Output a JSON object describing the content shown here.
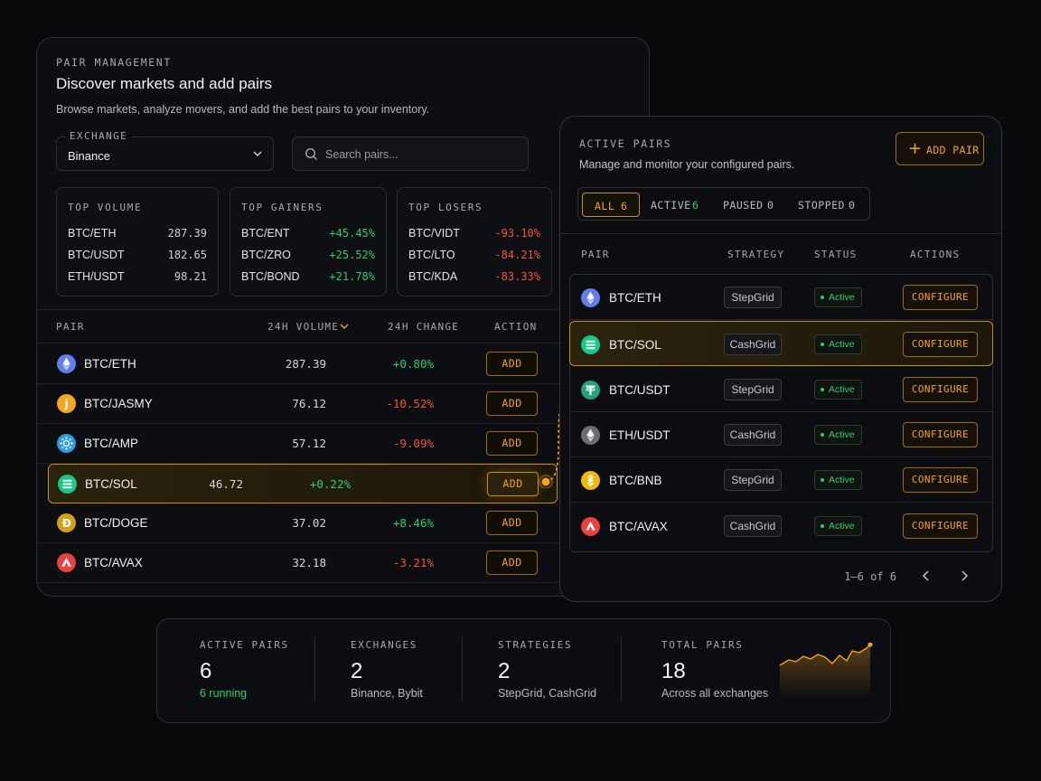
{
  "pair_management": {
    "eyebrow": "PAIR MANAGEMENT",
    "title": "Discover markets and add pairs",
    "subtitle": "Browse markets, analyze movers, and add the best pairs to your inventory.",
    "exchange": {
      "label": "EXCHANGE",
      "value": "Binance"
    },
    "search": {
      "placeholder": "Search pairs..."
    },
    "top_volume": {
      "label": "TOP VOLUME",
      "rows": [
        {
          "pair": "BTC/ETH",
          "value": "287.39"
        },
        {
          "pair": "BTC/USDT",
          "value": "182.65"
        },
        {
          "pair": "ETH/USDT",
          "value": "98.21"
        }
      ]
    },
    "top_gainers": {
      "label": "TOP GAINERS",
      "rows": [
        {
          "pair": "BTC/ENT",
          "value": "+45.45%"
        },
        {
          "pair": "BTC/ZRO",
          "value": "+25.52%"
        },
        {
          "pair": "BTC/BOND",
          "value": "+21.78%"
        }
      ]
    },
    "top_losers": {
      "label": "TOP LOSERS",
      "rows": [
        {
          "pair": "BTC/VIDT",
          "value": "-93.10%"
        },
        {
          "pair": "BTC/LTO",
          "value": "-84.21%"
        },
        {
          "pair": "BTC/KDA",
          "value": "-83.33%"
        }
      ]
    },
    "columns": {
      "pair": "PAIR",
      "volume": "24H VOLUME",
      "change": "24H CHANGE",
      "action": "ACTION"
    },
    "rows": [
      {
        "pair": "BTC/ETH",
        "volume": "287.39",
        "change": "+0.80%",
        "action": "ADD",
        "icon": "ethereum-icon"
      },
      {
        "pair": "BTC/JASMY",
        "volume": "76.12",
        "change": "-10.52%",
        "action": "ADD",
        "icon": "jasmy-icon"
      },
      {
        "pair": "BTC/AMP",
        "volume": "57.12",
        "change": "-9.09%",
        "action": "ADD",
        "icon": "amp-icon"
      },
      {
        "pair": "BTC/SOL",
        "volume": "46.72",
        "change": "+0.22%",
        "action": "ADD",
        "icon": "solana-icon",
        "selected": true
      },
      {
        "pair": "BTC/DOGE",
        "volume": "37.02",
        "change": "+8.46%",
        "action": "ADD",
        "icon": "dogecoin-icon"
      },
      {
        "pair": "BTC/AVAX",
        "volume": "32.18",
        "change": "-3.21%",
        "action": "ADD",
        "icon": "avalanche-icon"
      }
    ]
  },
  "active_pairs": {
    "eyebrow": "ACTIVE PAIRS",
    "subtitle": "Manage and monitor your configured pairs.",
    "add_button": "ADD PAIR",
    "tabs": [
      {
        "label": "ALL",
        "count": "6",
        "active": true
      },
      {
        "label": "ACTIVE",
        "count": "6"
      },
      {
        "label": "PAUSED",
        "count": "0"
      },
      {
        "label": "STOPPED",
        "count": "0"
      }
    ],
    "columns": {
      "pair": "PAIR",
      "strategy": "STRATEGY",
      "status": "STATUS",
      "actions": "ACTIONS"
    },
    "rows": [
      {
        "pair": "BTC/ETH",
        "strategy": "StepGrid",
        "status": "Active",
        "action": "CONFIGURE",
        "icon": "ethereum-icon"
      },
      {
        "pair": "BTC/SOL",
        "strategy": "CashGrid",
        "status": "Active",
        "action": "CONFIGURE",
        "icon": "solana-icon",
        "selected": true
      },
      {
        "pair": "BTC/USDT",
        "strategy": "StepGrid",
        "status": "Active",
        "action": "CONFIGURE",
        "icon": "tether-icon"
      },
      {
        "pair": "ETH/USDT",
        "strategy": "CashGrid",
        "status": "Active",
        "action": "CONFIGURE",
        "icon": "ethereum-icon"
      },
      {
        "pair": "BTC/BNB",
        "strategy": "StepGrid",
        "status": "Active",
        "action": "CONFIGURE",
        "icon": "bnb-icon"
      },
      {
        "pair": "BTC/AVAX",
        "strategy": "CashGrid",
        "status": "Active",
        "action": "CONFIGURE",
        "icon": "avalanche-icon"
      }
    ],
    "pagination": "1–6 of 6"
  },
  "summary": {
    "active_pairs": {
      "label": "ACTIVE PAIRS",
      "value": "6",
      "note": "6 running"
    },
    "exchanges": {
      "label": "EXCHANGES",
      "value": "2",
      "note": "Binance, Bybit"
    },
    "strategies": {
      "label": "STRATEGIES",
      "value": "2",
      "note": "StepGrid, CashGrid"
    },
    "total_pairs": {
      "label": "TOTAL PAIRS",
      "value": "18",
      "note": "Across all exchanges"
    }
  },
  "colors": {
    "accent": "#f2a324",
    "positive": "#2ecc71",
    "negative": "#f0553d",
    "background": "#08090b"
  }
}
